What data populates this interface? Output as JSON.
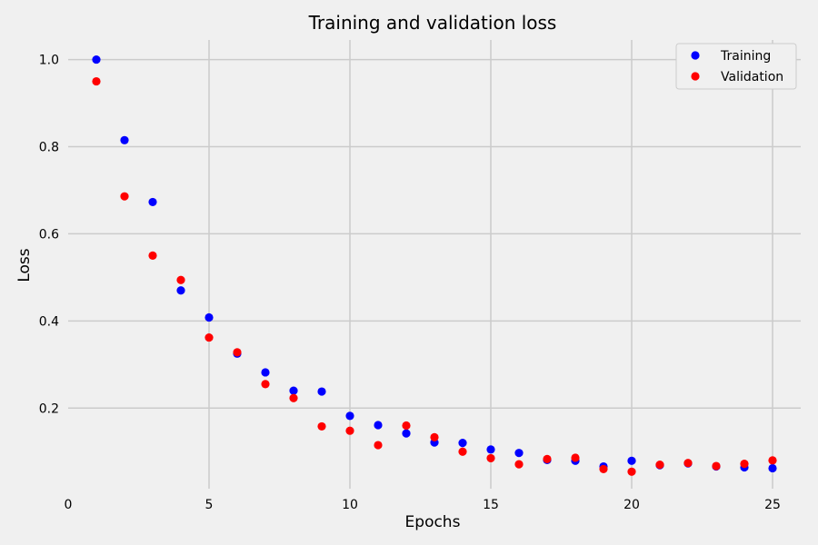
{
  "chart_data": {
    "type": "scatter",
    "title": "Training and validation loss",
    "xlabel": "Epochs",
    "ylabel": "Loss",
    "xlim": [
      0,
      26
    ],
    "ylim": [
      0.015,
      1.045
    ],
    "xticks": [
      0,
      5,
      10,
      15,
      20,
      25
    ],
    "yticks": [
      0.2,
      0.4,
      0.6,
      0.8,
      1.0
    ],
    "ytick_labels": [
      "0.2",
      "0.4",
      "0.6",
      "0.8",
      "1.0"
    ],
    "grid": true,
    "legend_position": "top-right",
    "x": [
      1,
      2,
      3,
      4,
      5,
      6,
      7,
      8,
      9,
      10,
      11,
      12,
      13,
      14,
      15,
      16,
      17,
      18,
      19,
      20,
      21,
      22,
      23,
      24,
      25
    ],
    "series": [
      {
        "name": "Training",
        "color": "#0000ff",
        "values": [
          1.0,
          0.815,
          0.673,
          0.47,
          0.408,
          0.325,
          0.282,
          0.24,
          0.238,
          0.182,
          0.161,
          0.142,
          0.121,
          0.12,
          0.105,
          0.097,
          0.081,
          0.079,
          0.066,
          0.079,
          0.069,
          0.073,
          0.066,
          0.064,
          0.062
        ]
      },
      {
        "name": "Validation",
        "color": "#ff0000",
        "values": [
          0.95,
          0.686,
          0.55,
          0.494,
          0.362,
          0.328,
          0.255,
          0.223,
          0.158,
          0.148,
          0.115,
          0.16,
          0.133,
          0.1,
          0.085,
          0.071,
          0.083,
          0.086,
          0.06,
          0.054,
          0.07,
          0.074,
          0.067,
          0.072,
          0.08
        ]
      }
    ]
  }
}
